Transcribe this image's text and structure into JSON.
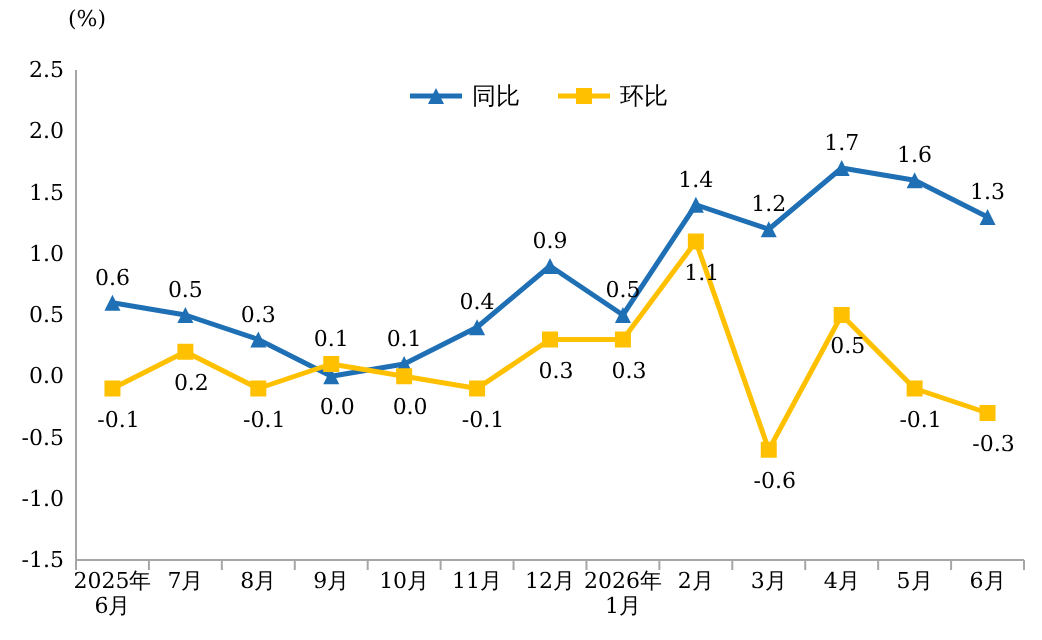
{
  "chart_data": {
    "type": "line",
    "ylabel": "(%)",
    "categories": [
      "2025年\n6月",
      "7月",
      "8月",
      "9月",
      "10月",
      "11月",
      "12月",
      "2026年\n1月",
      "2月",
      "3月",
      "4月",
      "5月",
      "6月"
    ],
    "series": [
      {
        "name": "同比",
        "color": "#1f6fb5",
        "marker": "triangle",
        "values": [
          0.6,
          0.5,
          0.3,
          0.0,
          0.1,
          0.4,
          0.9,
          0.5,
          1.4,
          1.2,
          1.7,
          1.6,
          1.3
        ],
        "value_labels": [
          "0.6",
          "0.5",
          "0.3",
          "0.0",
          "0.1",
          "0.4",
          "0.9",
          "0.5",
          "1.4",
          "1.2",
          "1.7",
          "1.6",
          "1.3"
        ]
      },
      {
        "name": "环比",
        "color": "#ffc000",
        "marker": "square",
        "values": [
          -0.1,
          0.2,
          -0.1,
          0.1,
          0.0,
          -0.1,
          0.3,
          0.3,
          1.1,
          -0.6,
          0.5,
          -0.1,
          -0.3
        ],
        "value_labels": [
          "-0.1",
          "0.2",
          "-0.1",
          "0.1",
          "0.0",
          "-0.1",
          "0.3",
          "0.3",
          "1.1",
          "-0.6",
          "0.5",
          "-0.1",
          "-0.3"
        ]
      }
    ],
    "ylim": [
      -1.5,
      2.5
    ],
    "yticks": [
      {
        "value": -1.5,
        "label": "-1.5"
      },
      {
        "value": -1.0,
        "label": "-1.0"
      },
      {
        "value": -0.5,
        "label": "-0.5"
      },
      {
        "value": 0,
        "label": "0.0"
      },
      {
        "value": 0.5,
        "label": "0.5"
      },
      {
        "value": 1.0,
        "label": "1.0"
      },
      {
        "value": 1.5,
        "label": "1.5"
      },
      {
        "value": 2.0,
        "label": "2.0"
      },
      {
        "value": 2.5,
        "label": "2.5"
      }
    ],
    "legend": "top",
    "grid": false,
    "line_style": "solid"
  }
}
